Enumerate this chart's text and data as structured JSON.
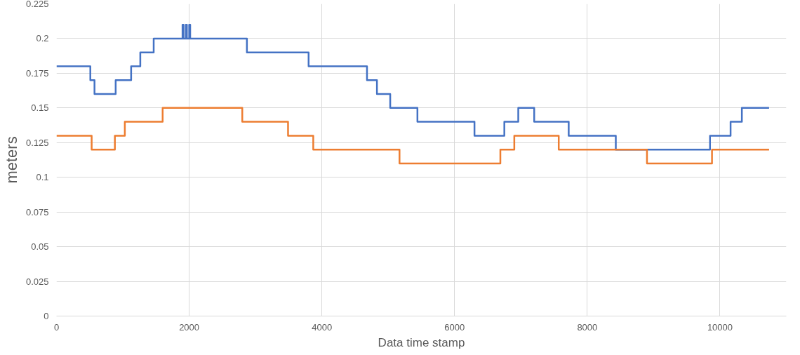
{
  "chart_data": {
    "type": "step",
    "xlabel": "Data time stamp",
    "ylabel": "meters",
    "xlim": [
      0,
      11000
    ],
    "xticks": [
      0,
      2000,
      4000,
      6000,
      8000,
      10000
    ],
    "ylim": [
      0,
      0.225
    ],
    "yticks": [
      0,
      0.025,
      0.05,
      0.075,
      0.1,
      0.125,
      0.15,
      0.175,
      0.2,
      0.225
    ],
    "grid": true,
    "line_style": "solid",
    "marker": "none",
    "series": [
      {
        "color": "#4472c4",
        "x": [
          0,
          510,
          573,
          892,
          1125,
          1263,
          1465,
          1900,
          1915,
          1950,
          1965,
          2000,
          2015,
          2870,
          3800,
          4680,
          4830,
          5030,
          5440,
          6300,
          6750,
          6960,
          7200,
          7720,
          8430,
          9850,
          10160,
          10330,
          10740
        ],
        "values": [
          0.18,
          0.17,
          0.16,
          0.17,
          0.18,
          0.19,
          0.2,
          0.21,
          0.2,
          0.21,
          0.2,
          0.21,
          0.2,
          0.19,
          0.18,
          0.17,
          0.16,
          0.15,
          0.14,
          0.13,
          0.14,
          0.15,
          0.14,
          0.13,
          0.12,
          0.13,
          0.14,
          0.15,
          0.15
        ]
      },
      {
        "color": "#ed7d31",
        "x": [
          0,
          530,
          880,
          1030,
          1600,
          2800,
          3490,
          3870,
          5170,
          6690,
          6900,
          7570,
          8900,
          9880,
          10740
        ],
        "values": [
          0.13,
          0.12,
          0.13,
          0.14,
          0.15,
          0.14,
          0.13,
          0.12,
          0.11,
          0.12,
          0.13,
          0.12,
          0.11,
          0.12,
          0.12
        ]
      }
    ]
  }
}
